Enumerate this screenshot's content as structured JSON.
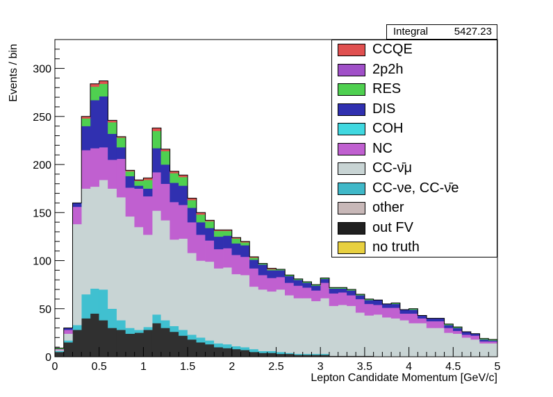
{
  "chart_data": {
    "type": "bar",
    "xlabel": "Lepton Candidate Momentum [GeV/c]",
    "ylabel": "Events / bin",
    "xlim": [
      0,
      5
    ],
    "ylim": [
      0,
      330
    ],
    "xticks": [
      0,
      0.5,
      1,
      1.5,
      2,
      2.5,
      3,
      3.5,
      4,
      4.5,
      5
    ],
    "xtick_labels": [
      "0",
      "0.5",
      "1",
      "1.5",
      "2",
      "2.5",
      "3",
      "3.5",
      "4",
      "4.5",
      "5"
    ],
    "yticks": [
      0,
      50,
      100,
      150,
      200,
      250,
      300
    ],
    "ytick_labels": [
      "0",
      "50",
      "100",
      "150",
      "200",
      "250",
      "300"
    ],
    "grid": false,
    "legend_placement": "top-right",
    "bin_width": 0.1,
    "stats": {
      "label": "Integral",
      "value": "5427.23"
    },
    "legend": [
      {
        "name": "CCQE",
        "color": "#e05050"
      },
      {
        "name": "2p2h",
        "color": "#a050c8"
      },
      {
        "name": "RES",
        "color": "#4fd050"
      },
      {
        "name": "DIS",
        "color": "#3030b0"
      },
      {
        "name": "COH",
        "color": "#40d8e0"
      },
      {
        "name": "NC",
        "color": "#c060d0"
      },
      {
        "name": "CC-ν̄μ",
        "color": "#c8d4d4"
      },
      {
        "name": "CC-νe, CC-ν̄e",
        "color": "#40b8c8"
      },
      {
        "name": "other",
        "color": "#c8b8b8"
      },
      {
        "name": "out FV",
        "color": "#202020"
      },
      {
        "name": "no truth",
        "color": "#e8d040"
      }
    ],
    "series": [
      {
        "name": "out FV",
        "color": "#303030",
        "values": [
          5,
          15,
          28,
          40,
          45,
          38,
          30,
          28,
          24,
          25,
          28,
          35,
          30,
          26,
          22,
          18,
          15,
          13,
          10,
          9,
          8,
          7,
          5,
          4,
          4,
          3,
          3,
          2,
          2,
          2,
          2,
          1,
          1,
          1,
          1,
          1,
          0,
          0,
          0,
          0,
          0,
          0,
          0,
          0,
          0,
          0,
          0,
          0,
          0,
          0
        ]
      },
      {
        "name": "CC-νe, CC-ν̄e",
        "color": "#40c0d0",
        "values": [
          1,
          2,
          5,
          25,
          26,
          32,
          20,
          10,
          6,
          3,
          3,
          9,
          8,
          6,
          6,
          5,
          5,
          4,
          4,
          4,
          3,
          3,
          3,
          2,
          2,
          2,
          1,
          1,
          1,
          1,
          1,
          0,
          0,
          0,
          0,
          0,
          0,
          0,
          0,
          0,
          0,
          0,
          0,
          0,
          0,
          0,
          0,
          0,
          0,
          0
        ]
      },
      {
        "name": "CC-ν̄μ",
        "color": "#c8d4d4",
        "values": [
          1,
          7,
          105,
          110,
          106,
          114,
          125,
          128,
          116,
          107,
          96,
          108,
          104,
          90,
          95,
          85,
          80,
          82,
          78,
          80,
          75,
          75,
          65,
          64,
          62,
          65,
          60,
          58,
          58,
          55,
          58,
          52,
          53,
          52,
          45,
          42,
          44,
          41,
          40,
          38,
          35,
          35,
          30,
          30,
          25,
          24,
          20,
          18,
          14,
          14
        ]
      },
      {
        "name": "NC",
        "color": "#c060d0",
        "values": [
          1,
          4,
          18,
          40,
          40,
          34,
          30,
          40,
          30,
          40,
          40,
          40,
          38,
          39,
          35,
          32,
          27,
          22,
          20,
          20,
          20,
          19,
          19,
          15,
          14,
          13,
          13,
          13,
          11,
          11,
          16,
          13,
          13,
          11,
          14,
          12,
          10,
          10,
          11,
          7,
          10,
          5,
          7,
          7,
          5,
          3,
          3,
          4,
          2,
          2
        ]
      },
      {
        "name": "DIS",
        "color": "#3030b0",
        "values": [
          0,
          2,
          4,
          25,
          50,
          53,
          27,
          12,
          12,
          3,
          8,
          25,
          20,
          20,
          20,
          15,
          13,
          13,
          13,
          13,
          12,
          12,
          9,
          11,
          8,
          7,
          7,
          6,
          5,
          5,
          4,
          5,
          4,
          5,
          4,
          4,
          5,
          4,
          4,
          4,
          4,
          3,
          3,
          3,
          3,
          3,
          3,
          2,
          2,
          1
        ]
      },
      {
        "name": "RES",
        "color": "#4fd050",
        "values": [
          1,
          0,
          0,
          8,
          14,
          13,
          12,
          10,
          5,
          5,
          9,
          18,
          14,
          10,
          9,
          8,
          8,
          7,
          6,
          5,
          5,
          3,
          2,
          1,
          1,
          1,
          1,
          1,
          1,
          1,
          1,
          1,
          1,
          1,
          1,
          1,
          0,
          0,
          1,
          0,
          1,
          0,
          0,
          0,
          1,
          1,
          0,
          0,
          1,
          1
        ]
      },
      {
        "name": "CCQE",
        "color": "#e05050",
        "values": [
          0,
          0,
          0,
          2,
          3,
          3,
          2,
          1,
          1,
          1,
          2,
          3,
          2,
          2,
          2,
          2,
          2,
          1,
          1,
          1,
          1,
          1,
          1,
          0,
          1,
          0,
          0,
          0,
          0,
          0,
          0,
          0,
          0,
          0,
          0,
          0,
          0,
          0,
          0,
          0,
          0,
          0,
          0,
          0,
          0,
          0,
          0,
          0,
          0,
          0
        ]
      }
    ]
  }
}
